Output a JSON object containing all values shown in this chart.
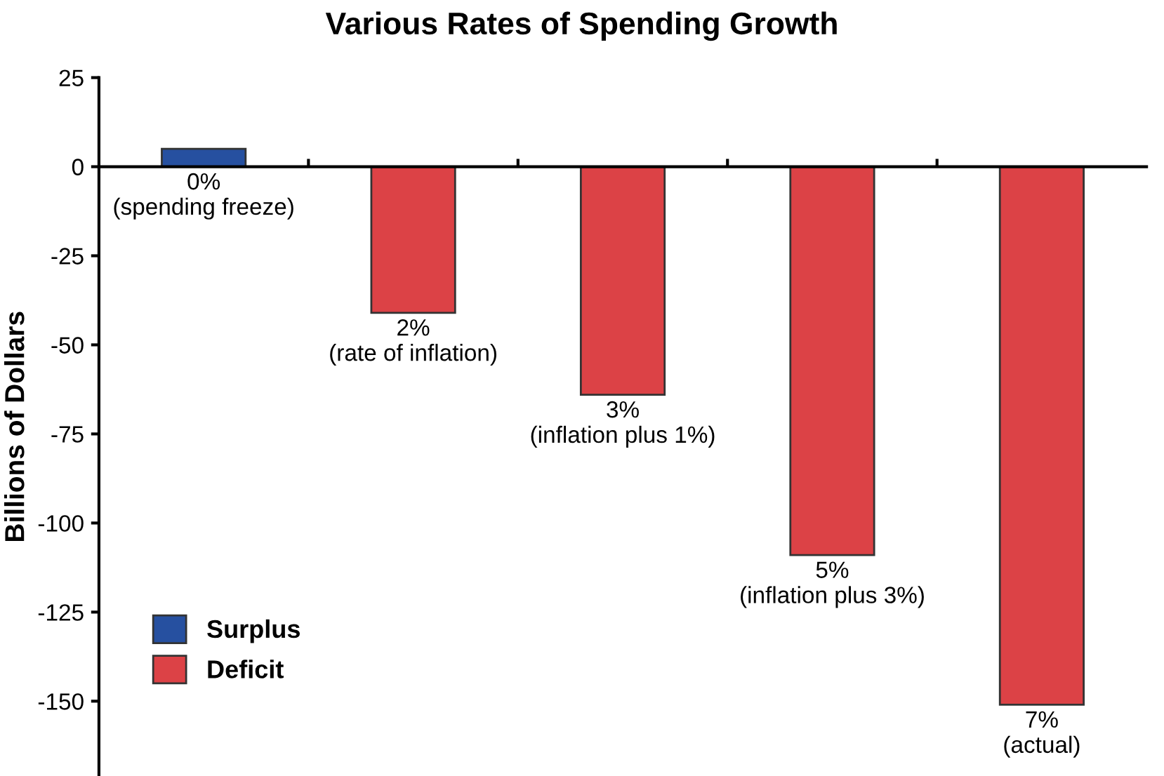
{
  "chart_data": {
    "type": "bar",
    "title": "Various Rates of Spending Growth",
    "ylabel": "Billions of Dollars",
    "categories": [
      "0%\n(spending freeze)",
      "2%\n(rate of inflation)",
      "3%\n(inflation plus 1%)",
      "5%\n(inflation plus 3%)",
      "7%\n(actual)"
    ],
    "series": [
      {
        "name": "Surplus",
        "color": "#2650a0",
        "values": [
          5,
          null,
          null,
          null,
          null
        ]
      },
      {
        "name": "Deficit",
        "color": "#dc4246",
        "values": [
          null,
          -41,
          -64,
          -109,
          -151
        ]
      }
    ],
    "stacked": true,
    "ylim": [
      -171,
      25
    ],
    "yticks": [
      25,
      0,
      -25,
      -50,
      -75,
      -100,
      -125,
      -150
    ],
    "legend": "bottom left"
  }
}
